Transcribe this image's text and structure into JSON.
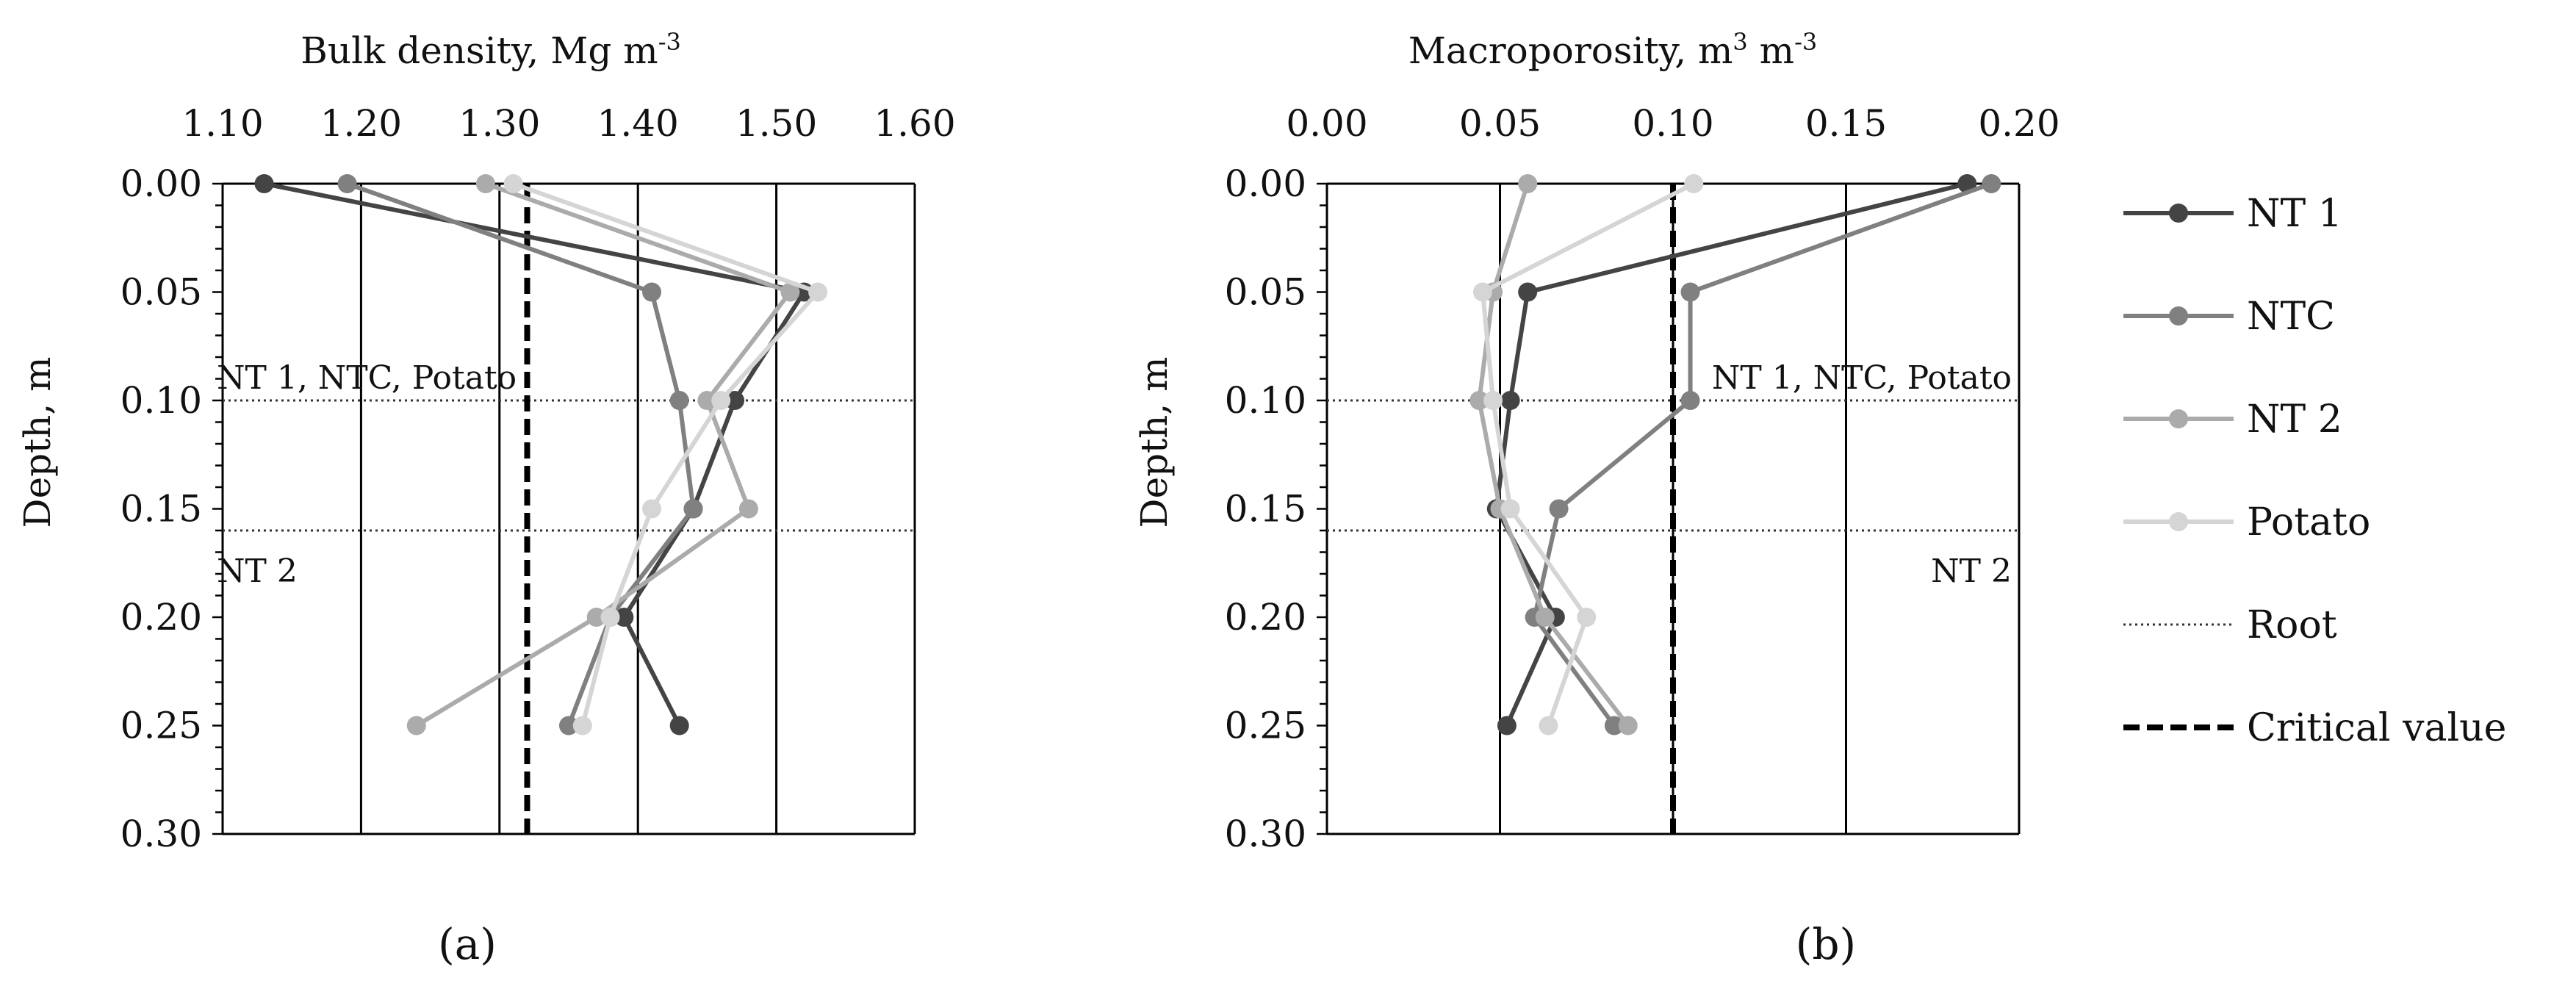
{
  "legend": {
    "items": [
      {
        "label": "NT 1",
        "color": "#444444",
        "style": "line-marker"
      },
      {
        "label": "NTC",
        "color": "#808080",
        "style": "line-marker"
      },
      {
        "label": "NT 2",
        "color": "#ababab",
        "style": "line-marker"
      },
      {
        "label": "Potato",
        "color": "#d5d5d5",
        "style": "line-marker"
      },
      {
        "label": "Root",
        "color": "#333333",
        "style": "dotted"
      },
      {
        "label": "Critical value",
        "color": "#000000",
        "style": "dashed"
      }
    ]
  },
  "chart_data": [
    {
      "type": "line",
      "panel_label": "(a)",
      "title": "Bulk density, Mg m",
      "title_superscript": "-3",
      "ylabel": "Depth, m",
      "xlim": [
        1.1,
        1.6
      ],
      "ylim": [
        0.0,
        0.3
      ],
      "xticks": [
        "1.10",
        "1.20",
        "1.30",
        "1.40",
        "1.50",
        "1.60"
      ],
      "yticks": [
        "0.00",
        "0.05",
        "0.10",
        "0.15",
        "0.20",
        "0.25",
        "0.30"
      ],
      "series": [
        {
          "name": "NT 1",
          "color": "#444444",
          "points": [
            [
              1.13,
              0.0
            ],
            [
              1.52,
              0.05
            ],
            [
              1.47,
              0.1
            ],
            [
              1.44,
              0.15
            ],
            [
              1.39,
              0.2
            ],
            [
              1.43,
              0.25
            ]
          ]
        },
        {
          "name": "NTC",
          "color": "#808080",
          "points": [
            [
              1.19,
              0.0
            ],
            [
              1.41,
              0.05
            ],
            [
              1.43,
              0.1
            ],
            [
              1.44,
              0.15
            ],
            [
              1.38,
              0.2
            ],
            [
              1.35,
              0.25
            ]
          ]
        },
        {
          "name": "NT 2",
          "color": "#ababab",
          "points": [
            [
              1.29,
              0.0
            ],
            [
              1.51,
              0.05
            ],
            [
              1.45,
              0.1
            ],
            [
              1.48,
              0.15
            ],
            [
              1.37,
              0.2
            ],
            [
              1.24,
              0.25
            ]
          ]
        },
        {
          "name": "Potato",
          "color": "#d5d5d5",
          "points": [
            [
              1.31,
              0.0
            ],
            [
              1.53,
              0.05
            ],
            [
              1.46,
              0.1
            ],
            [
              1.41,
              0.15
            ],
            [
              1.38,
              0.2
            ],
            [
              1.36,
              0.25
            ]
          ]
        }
      ],
      "root_lines": [
        {
          "depth": 0.1,
          "label": "NT 1, NTC, Potato",
          "label_side": "left",
          "label_pos": "above"
        },
        {
          "depth": 0.16,
          "label": "NT 2",
          "label_side": "left",
          "label_pos": "below"
        }
      ],
      "critical_value": 1.32
    },
    {
      "type": "line",
      "panel_label": "(b)",
      "title": "Macroporosity, m",
      "title_superscript1": "3",
      "title_middle": " m",
      "title_superscript": "-3",
      "ylabel": "Depth, m",
      "xlim": [
        0.0,
        0.2
      ],
      "ylim": [
        0.0,
        0.3
      ],
      "xticks": [
        "0.00",
        "0.05",
        "0.10",
        "0.15",
        "0.20"
      ],
      "yticks": [
        "0.00",
        "0.05",
        "0.10",
        "0.15",
        "0.20",
        "0.25",
        "0.30"
      ],
      "series": [
        {
          "name": "NT 1",
          "color": "#444444",
          "points": [
            [
              0.185,
              0.0
            ],
            [
              0.058,
              0.05
            ],
            [
              0.053,
              0.1
            ],
            [
              0.049,
              0.15
            ],
            [
              0.066,
              0.2
            ],
            [
              0.052,
              0.25
            ]
          ]
        },
        {
          "name": "NTC",
          "color": "#808080",
          "points": [
            [
              0.192,
              0.0
            ],
            [
              0.105,
              0.05
            ],
            [
              0.105,
              0.1
            ],
            [
              0.067,
              0.15
            ],
            [
              0.06,
              0.2
            ],
            [
              0.083,
              0.25
            ]
          ]
        },
        {
          "name": "NT 2",
          "color": "#ababab",
          "points": [
            [
              0.058,
              0.0
            ],
            [
              0.048,
              0.05
            ],
            [
              0.044,
              0.1
            ],
            [
              0.05,
              0.15
            ],
            [
              0.063,
              0.2
            ],
            [
              0.087,
              0.25
            ]
          ]
        },
        {
          "name": "Potato",
          "color": "#d5d5d5",
          "points": [
            [
              0.106,
              0.0
            ],
            [
              0.045,
              0.05
            ],
            [
              0.048,
              0.1
            ],
            [
              0.053,
              0.15
            ],
            [
              0.075,
              0.2
            ],
            [
              0.064,
              0.25
            ]
          ]
        }
      ],
      "root_lines": [
        {
          "depth": 0.1,
          "label": "NT 1, NTC, Potato",
          "label_side": "right",
          "label_pos": "above"
        },
        {
          "depth": 0.16,
          "label": "NT 2",
          "label_side": "right",
          "label_pos": "below"
        }
      ],
      "critical_value": 0.1
    }
  ]
}
